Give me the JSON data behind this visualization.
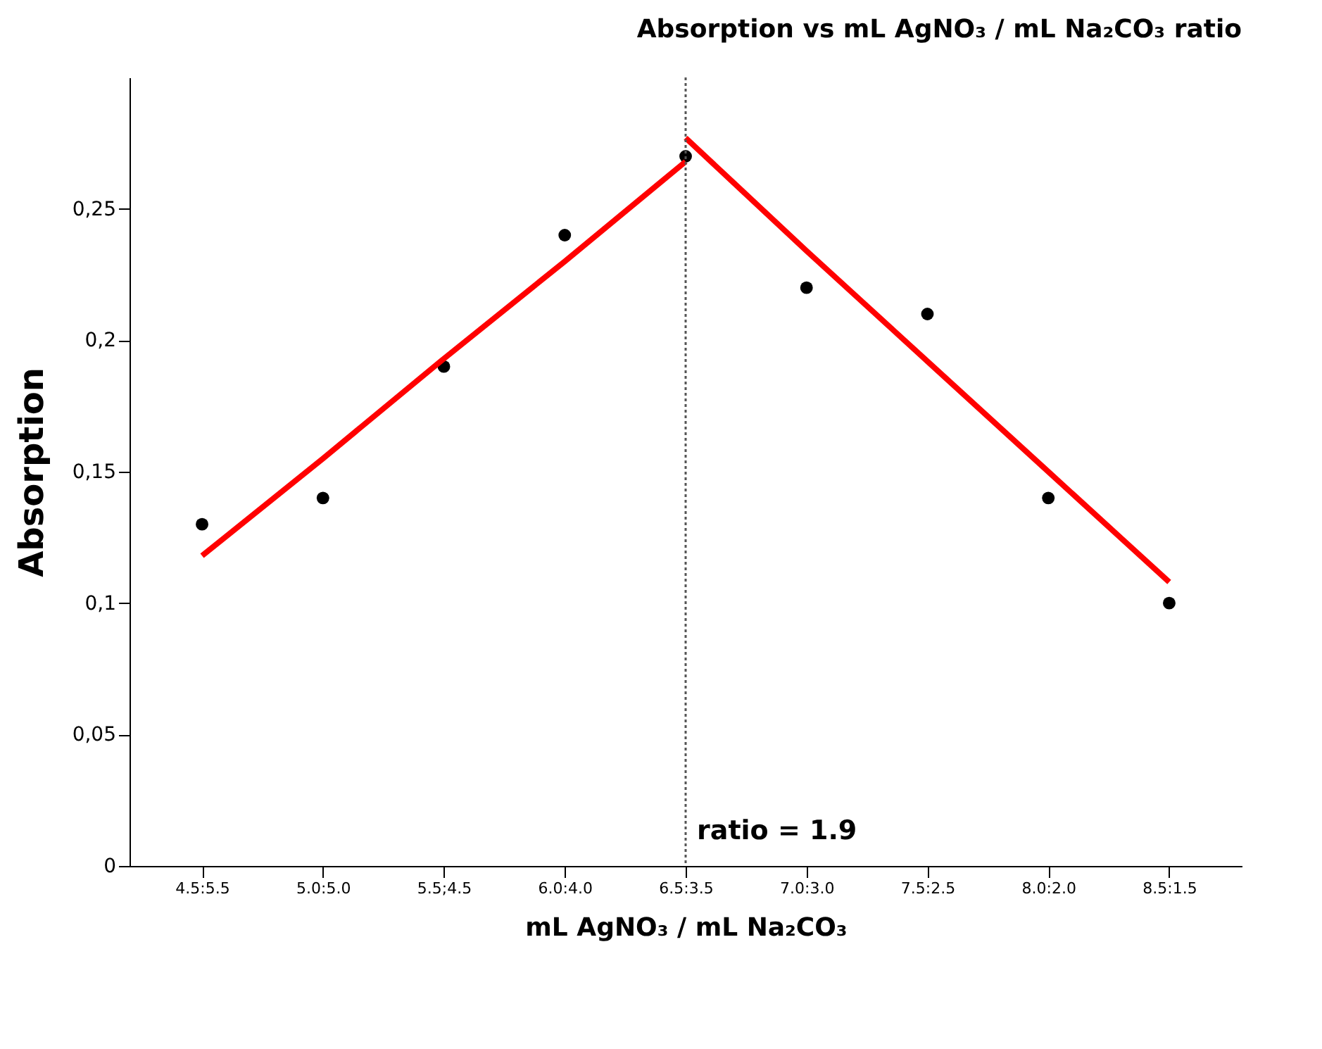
{
  "chart_data": {
    "type": "scatter",
    "title": "Absorption vs mL AgNO₃ / mL Na₂CO₃ ratio",
    "xlabel": "mL AgNO₃ / mL Na₂CO₃",
    "ylabel": "Absorption",
    "categories": [
      "4.5:5.5",
      "5.0:5.0",
      "5.5;4.5",
      "6.0:4.0",
      "6.5:3.5",
      "7.0:3.0",
      "7.5:2.5",
      "8.0:2.0",
      "8.5:1.5"
    ],
    "ylim": [
      0,
      0.3
    ],
    "yticks": [
      {
        "value": 0,
        "label": "0"
      },
      {
        "value": 0.05,
        "label": "0,05"
      },
      {
        "value": 0.1,
        "label": "0,1"
      },
      {
        "value": 0.15,
        "label": "0,15"
      },
      {
        "value": 0.2,
        "label": "0,2"
      },
      {
        "value": 0.25,
        "label": "0,25"
      }
    ],
    "series": [
      {
        "color": "#000000",
        "values": [
          0.13,
          0.14,
          0.19,
          0.24,
          0.27,
          0.22,
          0.21,
          0.14,
          0.1
        ]
      },
      {
        "type": "line",
        "marker": "none",
        "color": "#ff0000",
        "values": [
          0.118,
          0.155,
          0.193,
          0.23,
          0.268,
          null,
          null,
          null,
          null
        ]
      },
      {
        "type": "line",
        "marker": "none",
        "color": "#ff0000",
        "values": [
          null,
          null,
          null,
          null,
          0.277,
          0.234,
          0.192,
          0.15,
          0.108
        ]
      }
    ],
    "ref_lines": [
      {
        "axis": "x",
        "value": "6.5:3.5",
        "label": "ratio = 1.9",
        "color": "#555555",
        "line_style": "dotted"
      }
    ],
    "marker": "circle",
    "grid": false
  }
}
